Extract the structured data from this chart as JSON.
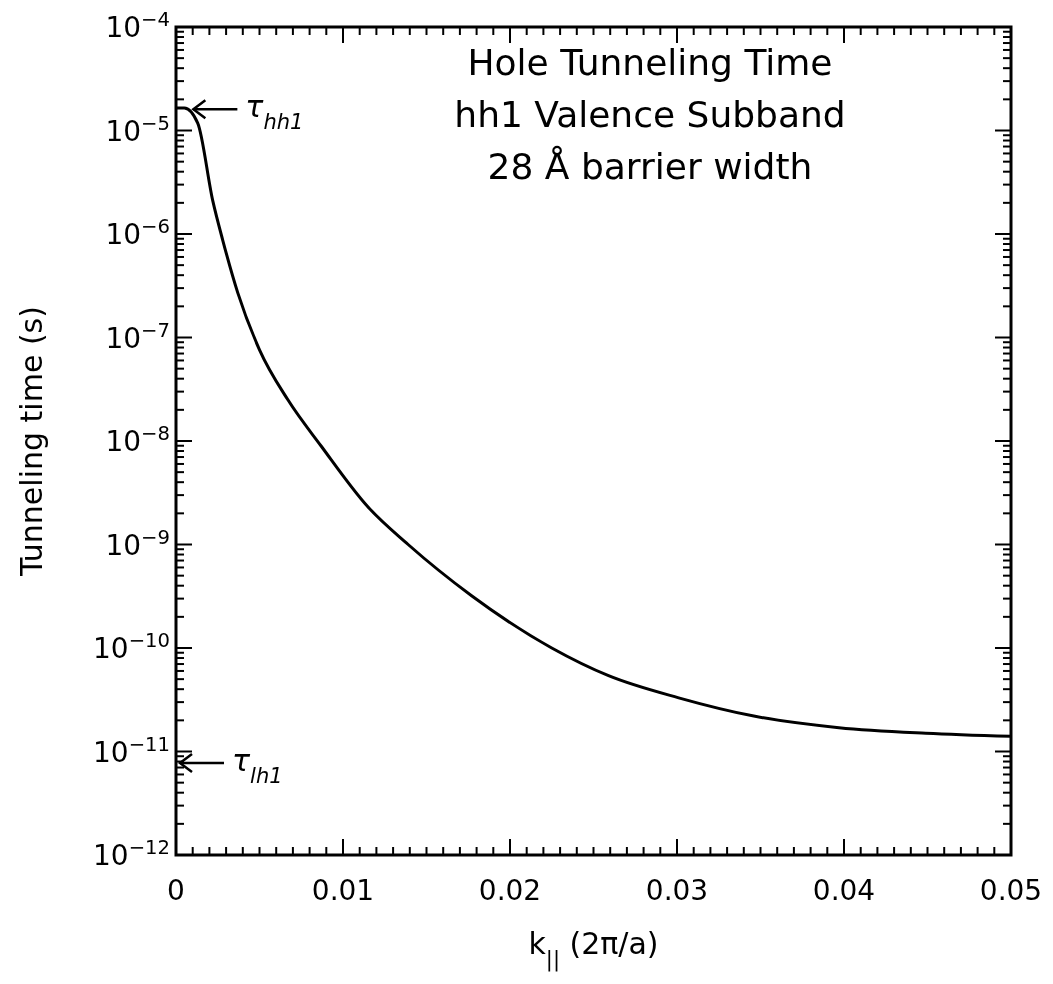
{
  "chart_data": {
    "type": "line",
    "title": "Hole Tunneling Time",
    "subtitle": "hh1 Valence Subband\n28 Å barrier width",
    "xlabel": "k$_{||}$ (2π/a)",
    "ylabel": "Tunneling time (s)",
    "log": "y",
    "x": [
      0,
      0.0005,
      0.0013,
      0.0022,
      0.0028,
      0.0037,
      0.005,
      0.0067,
      0.0087,
      0.0115,
      0.0139,
      0.0177,
      0.0225,
      0.0259,
      0.0301,
      0.0346,
      0.0397,
      0.0449,
      0.05
    ],
    "series": [
      {
        "color": "#000000",
        "values": [
          1.65e-05,
          1.65e-05,
          1.18e-05,
          2.1e-06,
          8.7e-07,
          2.7e-07,
          7.6e-08,
          2.5e-08,
          8.9e-09,
          2.3e-09,
          1e-09,
          3.2e-10,
          1e-10,
          5.4e-11,
          3.3e-11,
          2.2e-11,
          1.7e-11,
          1.5e-11,
          1.4e-11
        ]
      }
    ],
    "xlim": [
      0,
      0.05
    ],
    "xticks": [
      0,
      0.01,
      0.02,
      0.03,
      0.04,
      0.05
    ],
    "ylim": [
      1e-12,
      0.0001
    ],
    "yticks": [
      {
        "value": 1e-12,
        "label": "10$^{−12}$"
      },
      {
        "value": 1e-11,
        "label": "10$^{−11}$"
      },
      {
        "value": 1e-10,
        "label": "10$^{−10}$"
      },
      {
        "value": 1e-09,
        "label": "10$^{−9}$"
      },
      {
        "value": 1e-08,
        "label": "10$^{−8}$"
      },
      {
        "value": 1e-07,
        "label": "10$^{−7}$"
      },
      {
        "value": 1e-06,
        "label": "10$^{−6}$"
      },
      {
        "value": 1e-05,
        "label": "10$^{−5}$"
      },
      {
        "value": 0.0001,
        "label": "10$^{−4}$"
      }
    ],
    "annotations": [
      {
        "text": "τ$_{hh1}$",
        "x": 0.0008,
        "y": 1.6e-05
      },
      "τ$_{lh1}$"
    ],
    "grid": false,
    "marker": "none",
    "line_style": "solid"
  }
}
